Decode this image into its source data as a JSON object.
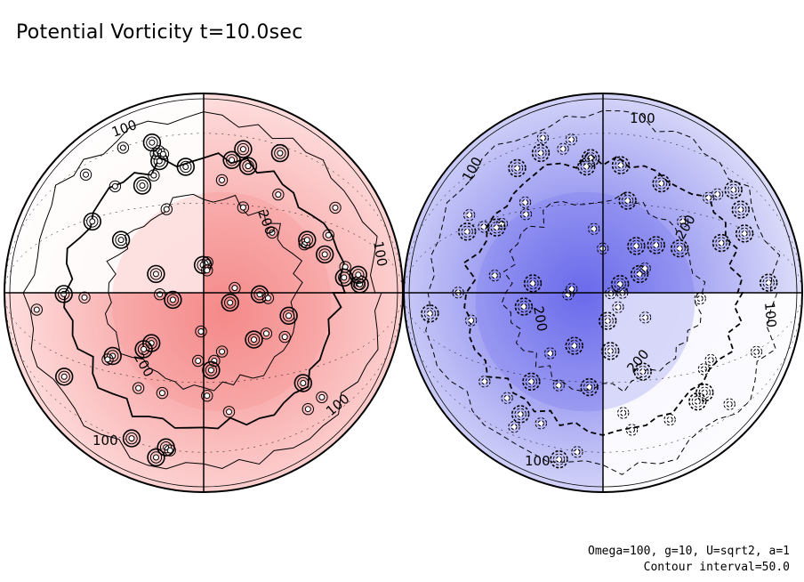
{
  "chart_data": {
    "type": "contour",
    "title": "Potential Vorticity t=10.0sec",
    "projection": "orthographic",
    "contour_interval": 50.0,
    "colors": {
      "positive_light": "#ffe6e6",
      "positive_strong": "#f58a8a",
      "negative_light": "#e8e8fb",
      "negative_strong": "#6b6bec",
      "neutral": "#ffffff"
    },
    "hemispheres": [
      {
        "name": "left",
        "sign": "positive",
        "contour_labels": [
          "100",
          "100",
          "100",
          "200",
          "200",
          "100"
        ]
      },
      {
        "name": "right",
        "sign": "negative",
        "contour_labels": [
          "100",
          "100",
          "100",
          "200",
          "200",
          "100",
          "200"
        ]
      }
    ],
    "annotations": [
      "Omega=100, g=10, U=sqrt2, a=1",
      "Contour interval=50.0"
    ]
  }
}
